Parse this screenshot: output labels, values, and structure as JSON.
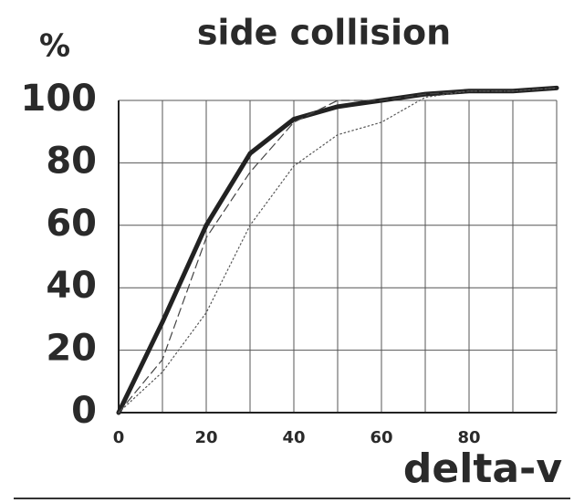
{
  "chart_data": {
    "type": "line",
    "title": "side collision",
    "ylabel": "%",
    "xlabel": "delta-v",
    "x": [
      0,
      10,
      20,
      30,
      40,
      50,
      60,
      70,
      80,
      90,
      100
    ],
    "series": [
      {
        "color": "#222222",
        "style": "solid",
        "width": 5,
        "values": [
          0,
          29,
          60,
          83,
          94,
          98,
          100,
          102,
          103,
          103,
          104
        ]
      },
      {
        "color": "#444444",
        "style": "dashed",
        "width": 1.2,
        "values": [
          0,
          17,
          56,
          77,
          93,
          100,
          100,
          102,
          103,
          103,
          104
        ]
      },
      {
        "color": "#555555",
        "style": "dotted",
        "width": 1.2,
        "values": [
          0,
          13,
          32,
          60,
          79,
          89,
          93,
          101,
          103,
          103,
          104
        ]
      }
    ],
    "xlim": [
      0,
      100
    ],
    "xticks": [
      0,
      20,
      40,
      60,
      80
    ],
    "xminorticks": [
      10,
      30,
      50,
      70,
      90,
      100
    ],
    "ylim": [
      0,
      100
    ],
    "yticks": [
      0,
      20,
      40,
      60,
      80,
      100
    ],
    "grid": true
  }
}
